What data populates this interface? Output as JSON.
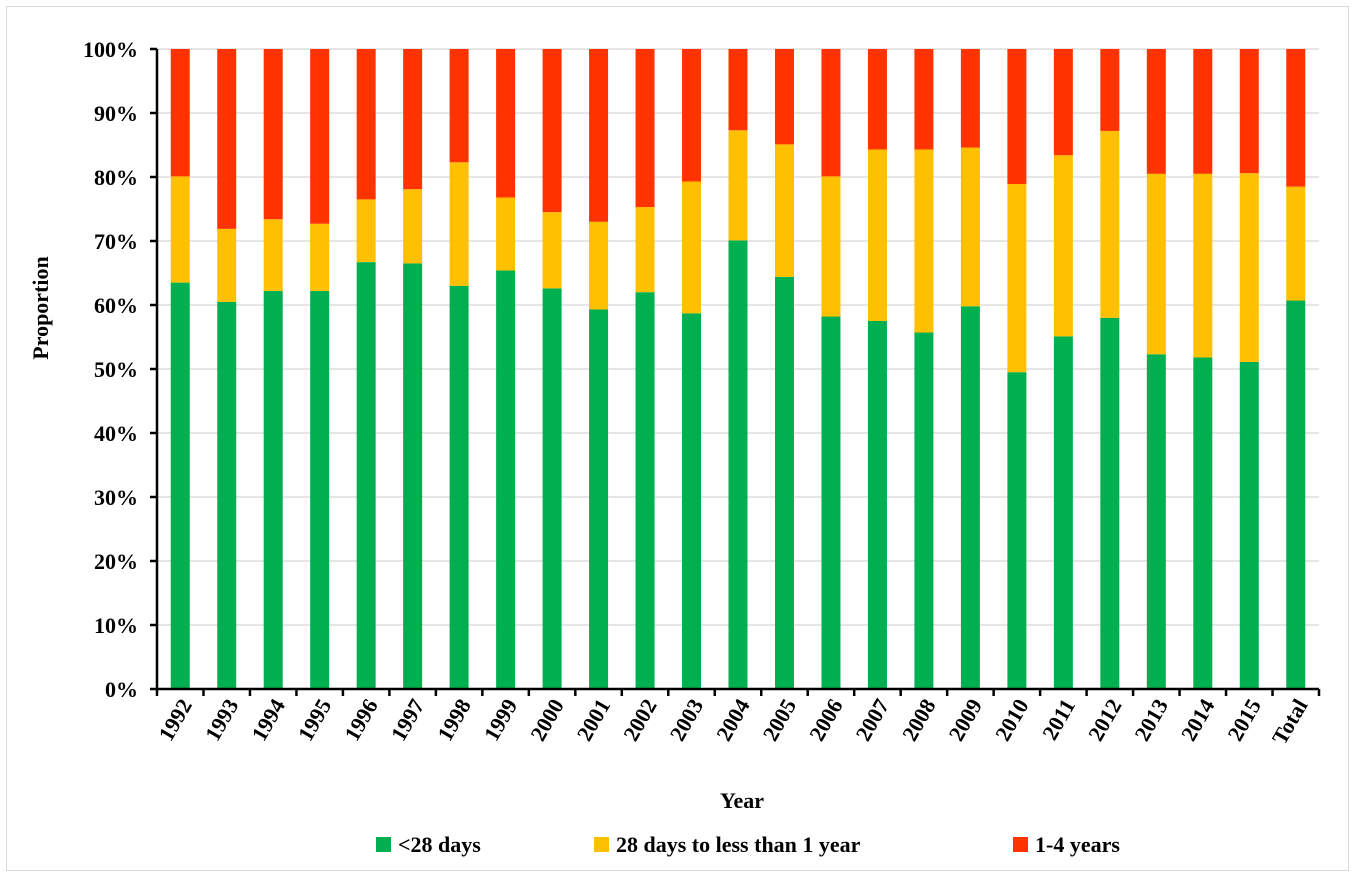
{
  "chart_data": {
    "type": "bar",
    "stacked": true,
    "percent_stacked": true,
    "title": "",
    "xlabel": "Year",
    "ylabel": "Proportion",
    "ylim": [
      0,
      100
    ],
    "y_ticks": [
      "0%",
      "10%",
      "20%",
      "30%",
      "40%",
      "50%",
      "60%",
      "70%",
      "80%",
      "90%",
      "100%"
    ],
    "grid": true,
    "legend_position": "bottom",
    "categories": [
      "1992",
      "1993",
      "1994",
      "1995",
      "1996",
      "1997",
      "1998",
      "1999",
      "2000",
      "2001",
      "2002",
      "2003",
      "2004",
      "2005",
      "2006",
      "2007",
      "2008",
      "2009",
      "2010",
      "2011",
      "2012",
      "2013",
      "2014",
      "2015",
      "Total"
    ],
    "series": [
      {
        "name": "<28 days",
        "color": "#00b050",
        "values": [
          63.5,
          60.5,
          62.2,
          62.2,
          66.7,
          66.5,
          63.0,
          65.4,
          62.6,
          59.3,
          62.0,
          58.7,
          70.1,
          64.4,
          58.2,
          57.5,
          55.7,
          59.8,
          49.5,
          55.1,
          58.0,
          52.3,
          51.8,
          51.1,
          60.7
        ]
      },
      {
        "name": "28 days to less than 1 year",
        "color": "#ffc000",
        "values": [
          16.6,
          11.4,
          11.2,
          10.5,
          9.8,
          11.6,
          19.3,
          11.4,
          11.9,
          13.7,
          13.3,
          20.6,
          17.2,
          20.7,
          21.9,
          26.8,
          28.6,
          24.8,
          29.4,
          28.3,
          29.2,
          28.2,
          28.7,
          29.5,
          17.8
        ]
      },
      {
        "name": "1-4 years",
        "color": "#ff3300",
        "values": [
          19.9,
          28.1,
          26.6,
          27.3,
          23.5,
          21.9,
          17.7,
          23.2,
          25.5,
          27.0,
          24.7,
          20.7,
          12.7,
          14.9,
          19.9,
          15.7,
          15.7,
          15.4,
          21.1,
          16.6,
          12.8,
          19.5,
          19.5,
          19.4,
          21.5
        ]
      }
    ]
  }
}
